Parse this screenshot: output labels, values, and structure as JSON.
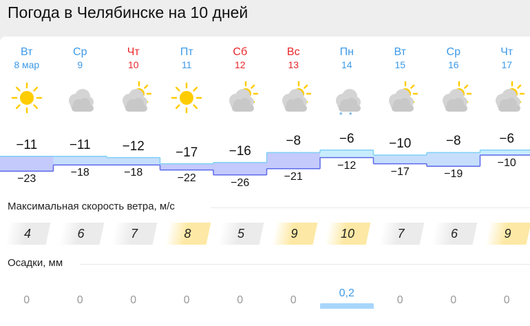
{
  "title": "Погода в Челябинске на 10 дней",
  "colors": {
    "weekday": "#3d9ae8",
    "weekend": "#e8262a",
    "wind_calm": "#ebebeb",
    "wind_strong": "#fde9a5"
  },
  "days": [
    {
      "dow": "Вт",
      "date": "8 мар",
      "weekend": false,
      "icon": "sun-icon",
      "max": -11,
      "min": -23,
      "wind": 4,
      "precip": "0"
    },
    {
      "dow": "Ср",
      "date": "9",
      "weekend": false,
      "icon": "cloudy-icon",
      "max": -11,
      "min": -18,
      "wind": 6,
      "precip": "0"
    },
    {
      "dow": "Чт",
      "date": "10",
      "weekend": true,
      "icon": "partly-cloudy-icon",
      "max": -12,
      "min": -18,
      "wind": 7,
      "precip": "0"
    },
    {
      "dow": "Пт",
      "date": "11",
      "weekend": false,
      "icon": "sun-icon",
      "max": -17,
      "min": -22,
      "wind": 8,
      "precip": "0"
    },
    {
      "dow": "Сб",
      "date": "12",
      "weekend": true,
      "icon": "partly-cloudy-icon",
      "max": -16,
      "min": -26,
      "wind": 5,
      "precip": "0"
    },
    {
      "dow": "Вс",
      "date": "13",
      "weekend": true,
      "icon": "partly-cloudy-icon",
      "max": -8,
      "min": -21,
      "wind": 9,
      "precip": "0"
    },
    {
      "dow": "Пн",
      "date": "14",
      "weekend": false,
      "icon": "cloudy-snow-icon",
      "max": -6,
      "min": -12,
      "wind": 10,
      "precip": "0,2"
    },
    {
      "dow": "Вт",
      "date": "15",
      "weekend": false,
      "icon": "partly-cloudy-icon",
      "max": -10,
      "min": -17,
      "wind": 7,
      "precip": "0"
    },
    {
      "dow": "Ср",
      "date": "16",
      "weekend": false,
      "icon": "partly-cloudy-icon",
      "max": -8,
      "min": -19,
      "wind": 6,
      "precip": "0"
    },
    {
      "dow": "Чт",
      "date": "17",
      "weekend": false,
      "icon": "partly-cloudy-icon",
      "max": -6,
      "min": -10,
      "wind": 9,
      "precip": "0"
    }
  ],
  "wind_label": "Максимальная скорость ветра, м/с",
  "precip_label": "Осадки, мм",
  "precip_mm": [
    0,
    0,
    0,
    0,
    0,
    0,
    0.2,
    0,
    0,
    0
  ]
}
